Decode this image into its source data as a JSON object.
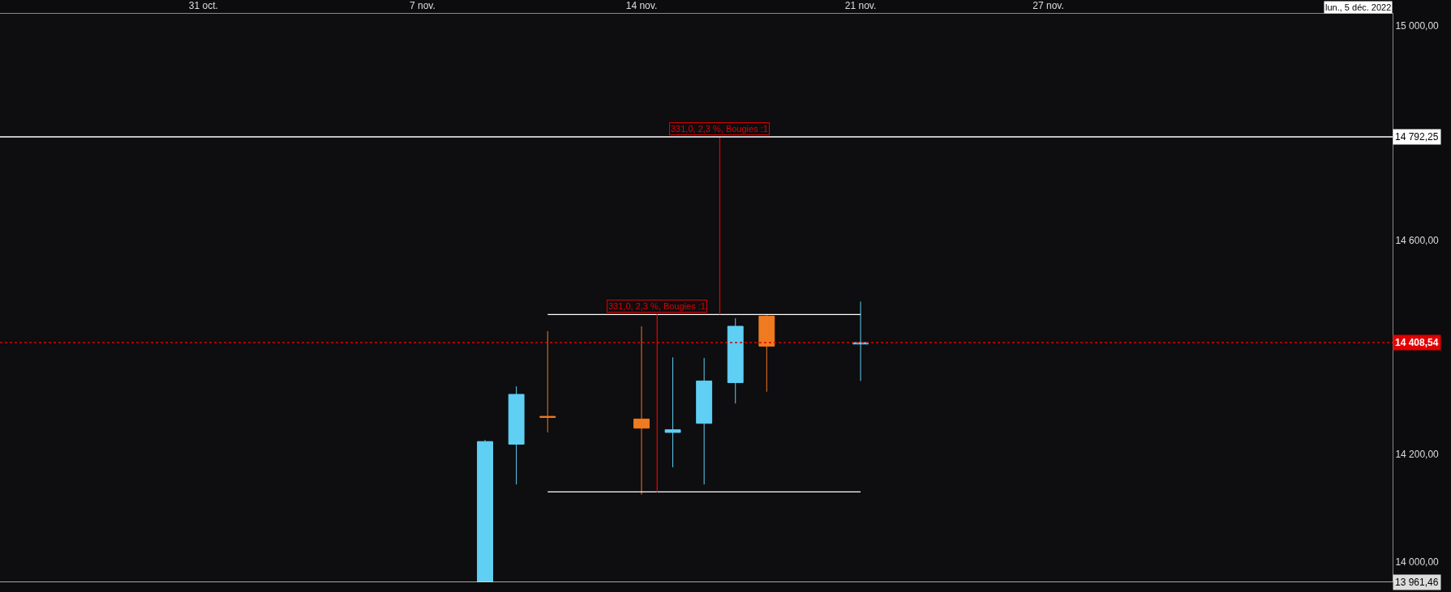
{
  "chart_data": {
    "type": "candlestick",
    "x": [
      "2022-11-09",
      "2022-11-10",
      "2022-11-11",
      "2022-11-14",
      "2022-11-15",
      "2022-11-16",
      "2022-11-17",
      "2022-11-18",
      "2022-11-21"
    ],
    "ohlc": [
      [
        13962,
        14227,
        13962,
        14224
      ],
      [
        14219,
        14327,
        14144,
        14312
      ],
      [
        14271,
        14430,
        14241,
        14269
      ],
      [
        14266,
        14439,
        14125,
        14249
      ],
      [
        14241,
        14381,
        14176,
        14246
      ],
      [
        14258,
        14380,
        14144,
        14337
      ],
      [
        14334,
        14454,
        14295,
        14439
      ],
      [
        14458,
        14461,
        14317,
        14402
      ],
      [
        14406,
        14485,
        14337,
        14408.54
      ]
    ],
    "colors": [
      "#5fcff3",
      "#5fcff3",
      "#f07a1f",
      "#f07a1f",
      "#5fcff3",
      "#5fcff3",
      "#5fcff3",
      "#f07a1f",
      "#5fcff3"
    ],
    "series": [
      {
        "type": "line",
        "color": "#ffffff",
        "x": [
          "2022-11-11",
          "2022-11-21"
        ],
        "values": [
          14461,
          14461
        ]
      },
      {
        "type": "line",
        "color": "#ffffff",
        "x": [
          "2022-11-11",
          "2022-11-21"
        ],
        "values": [
          14130,
          14130
        ]
      },
      {
        "type": "line",
        "color": "#e00000",
        "x": [
          "2022-11-14T12:00",
          "2022-11-14T12:00"
        ],
        "values": [
          14130,
          14461
        ]
      },
      {
        "type": "line",
        "color": "#e00000",
        "x": [
          "2022-11-16T12:00",
          "2022-11-16T12:00"
        ],
        "values": [
          14461,
          14792
        ]
      }
    ],
    "ref_lines": [
      {
        "axis": "y",
        "value": 14792.25,
        "label": "14 792,25",
        "color": "#ffffff",
        "line_style": "solid"
      },
      {
        "axis": "y",
        "value": 14408.54,
        "label": "14 408,54",
        "color": "#e00000",
        "line_style": "dotted"
      },
      {
        "axis": "y",
        "value": 13961.46,
        "label": "13 961,46",
        "color": "#dddddd",
        "line_style": "solid"
      }
    ],
    "annotations": [
      {
        "text": "331,0, 2,3 %, Bougies :1",
        "x": "2022-11-14T12:00",
        "y": 14461
      },
      {
        "text": "331,0, 2,3 %, Bougies :1",
        "x": "2022-11-16T12:00",
        "y": 14792
      },
      "lun., 5 déc. 2022"
    ],
    "xlim": [
      "2022-10-24T12:00",
      "2022-12-08"
    ],
    "xticks": [
      {
        "value": "2022-10-31",
        "label": "31 oct."
      },
      {
        "value": "2022-11-07",
        "label": "7 nov."
      },
      {
        "value": "2022-11-14",
        "label": "14 nov."
      },
      {
        "value": "2022-11-21",
        "label": "21 nov."
      },
      {
        "value": "2022-11-27",
        "label": "27 nov."
      }
    ],
    "ylim": [
      13961.46,
      15022
    ],
    "yticks": [
      {
        "value": 14000,
        "label": "14 000,00"
      },
      {
        "value": 14200,
        "label": "14 200,00"
      },
      {
        "value": 14600,
        "label": "14 600,00"
      },
      {
        "value": 15000,
        "label": "15 000,00"
      }
    ]
  }
}
